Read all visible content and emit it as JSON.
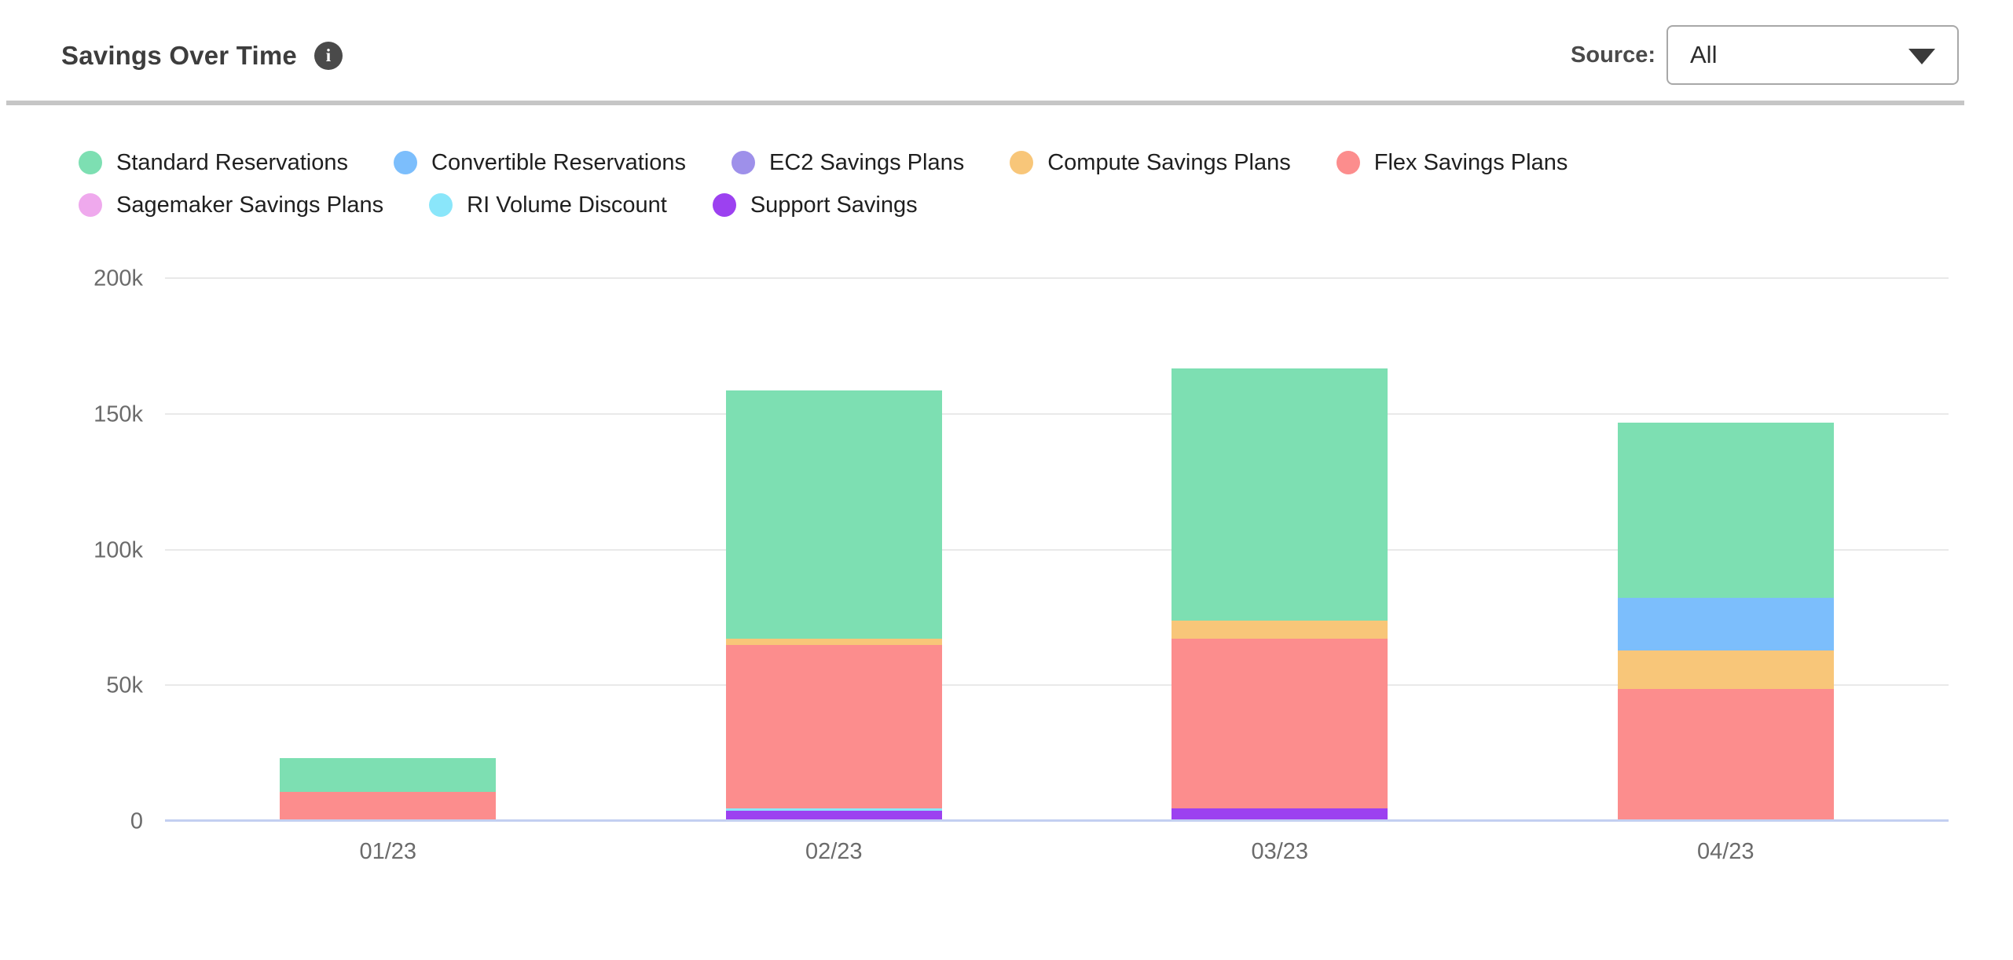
{
  "header": {
    "title": "Savings Over Time",
    "source_label": "Source:",
    "source_value": "All"
  },
  "chart_data": {
    "type": "bar",
    "stacked": true,
    "title": "Savings Over Time",
    "xlabel": "",
    "ylabel": "",
    "categories": [
      "01/23",
      "02/23",
      "03/23",
      "04/23"
    ],
    "series": [
      {
        "name": "Standard Reservations",
        "color": "#7DDFB2",
        "values": [
          12500,
          91500,
          93000,
          64500
        ]
      },
      {
        "name": "Convertible Reservations",
        "color": "#7CBEFC",
        "values": [
          0,
          0,
          0,
          19500
        ]
      },
      {
        "name": "EC2 Savings Plans",
        "color": "#9E90EA",
        "values": [
          0,
          0,
          0,
          0
        ]
      },
      {
        "name": "Compute Savings Plans",
        "color": "#F8C679",
        "values": [
          0,
          2500,
          6500,
          14000
        ]
      },
      {
        "name": "Flex Savings Plans",
        "color": "#FC8D8D",
        "values": [
          10000,
          60000,
          62500,
          49000
        ]
      },
      {
        "name": "Sagemaker Savings Plans",
        "color": "#EFA9ED",
        "values": [
          0,
          0,
          0,
          0
        ]
      },
      {
        "name": "RI Volume Discount",
        "color": "#8AE6FA",
        "values": [
          0,
          1000,
          0,
          0
        ]
      },
      {
        "name": "Support Savings",
        "color": "#9C41F0",
        "values": [
          1000,
          4000,
          5000,
          0
        ]
      }
    ],
    "stack_order": [
      "Support Savings",
      "RI Volume Discount",
      "Sagemaker Savings Plans",
      "Flex Savings Plans",
      "Compute Savings Plans",
      "EC2 Savings Plans",
      "Convertible Reservations",
      "Standard Reservations"
    ],
    "ylim": [
      0,
      200000
    ],
    "yticks": [
      {
        "value": 0,
        "label": "0"
      },
      {
        "value": 50000,
        "label": "50k"
      },
      {
        "value": 100000,
        "label": "100k"
      },
      {
        "value": 150000,
        "label": "150k"
      },
      {
        "value": 200000,
        "label": "200k"
      }
    ],
    "grid": "horizontal",
    "legend_position": "top",
    "gridline_color": "#e9e9e9",
    "baseline_color": "#c3cff1"
  }
}
